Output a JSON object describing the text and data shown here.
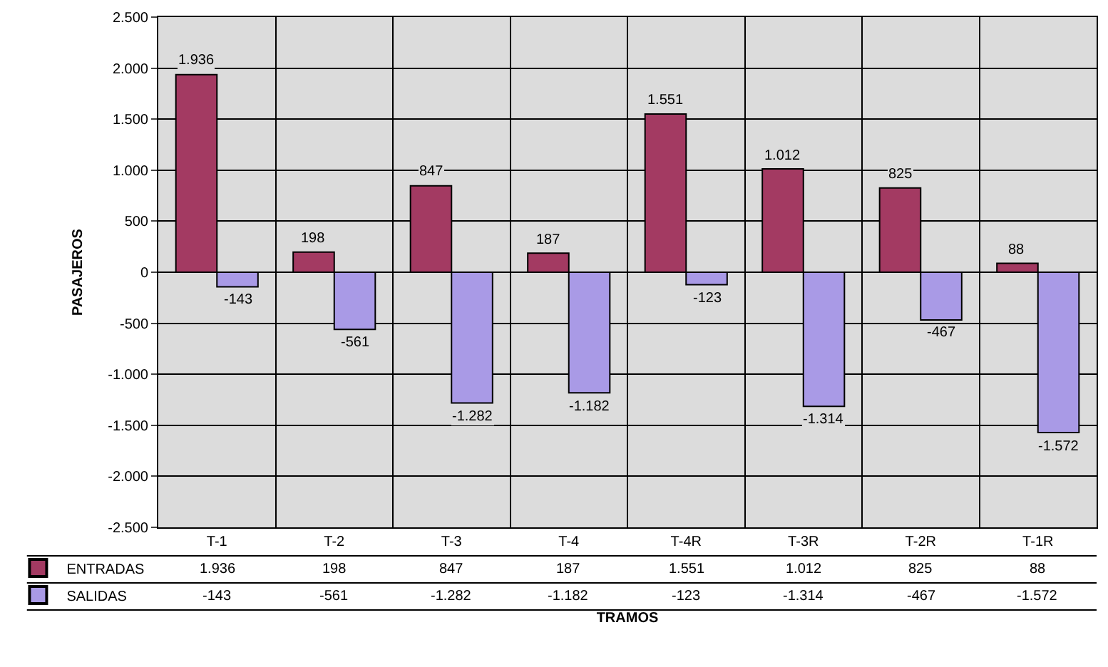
{
  "chart_data": {
    "type": "bar",
    "xlabel": "TRAMOS",
    "ylabel": "PASAJEROS",
    "categories": [
      "T-1",
      "T-2",
      "T-3",
      "T-4",
      "T-4R",
      "T-3R",
      "T-2R",
      "T-1R"
    ],
    "series": [
      {
        "name": "ENTRADAS",
        "color": "#a33a62",
        "values": [
          1936,
          198,
          847,
          187,
          1551,
          1012,
          825,
          88
        ],
        "value_labels": [
          "1.936",
          "198",
          "847",
          "187",
          "1.551",
          "1.012",
          "825",
          "88"
        ]
      },
      {
        "name": "SALIDAS",
        "color": "#a99ae6",
        "values": [
          -143,
          -561,
          -1282,
          -1182,
          -123,
          -1314,
          -467,
          -1572
        ],
        "value_labels": [
          "-143",
          "-561",
          "-1.282",
          "-1.182",
          "-123",
          "-1.314",
          "-467",
          "-1.572"
        ]
      }
    ],
    "ylim": [
      -2500,
      2500
    ],
    "yticks": [
      {
        "value": -2500,
        "label": "-2.500"
      },
      {
        "value": -2000,
        "label": "-2.000"
      },
      {
        "value": -1500,
        "label": "-1.500"
      },
      {
        "value": -1000,
        "label": "-1.000"
      },
      {
        "value": -500,
        "label": "-500"
      },
      0,
      {
        "value": 500,
        "label": "500"
      },
      {
        "value": 1000,
        "label": "1.000"
      },
      {
        "value": 1500,
        "label": "1.500"
      },
      {
        "value": 2000,
        "label": "2.000"
      },
      {
        "value": 2500,
        "label": "2.500"
      }
    ],
    "grid": true,
    "legend": "bottom left"
  }
}
